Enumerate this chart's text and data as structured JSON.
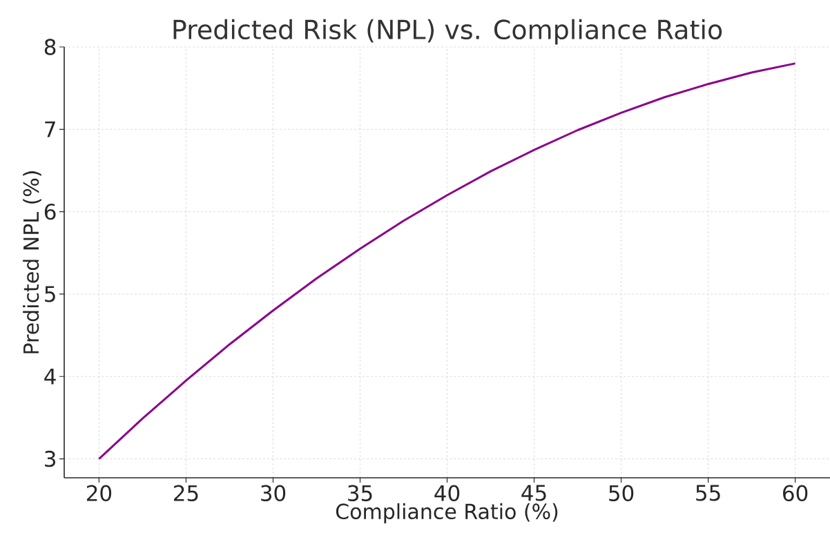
{
  "chart_data": {
    "type": "line",
    "title": "Predicted Risk (NPL) vs. Compliance Ratio",
    "xlabel": "Compliance Ratio (%)",
    "ylabel": "Predicted NPL (%)",
    "x": [
      20,
      22.5,
      25,
      27.5,
      30,
      32.5,
      35,
      37.5,
      40,
      42.5,
      45,
      47.5,
      50,
      52.5,
      55,
      57.5,
      60
    ],
    "values": [
      3,
      3.49,
      3.95,
      4.39,
      4.8,
      5.19,
      5.55,
      5.89,
      6.2,
      6.49,
      6.75,
      6.99,
      7.2,
      7.39,
      7.55,
      7.69,
      7.8
    ],
    "color": "#8b008b",
    "xlim": [
      18,
      62
    ],
    "ylim": [
      2.77,
      8.0
    ],
    "xticks": [
      20,
      25,
      30,
      35,
      40,
      45,
      50,
      55,
      60
    ],
    "yticks": [
      3,
      4,
      5,
      6,
      7,
      8
    ],
    "grid": true
  }
}
